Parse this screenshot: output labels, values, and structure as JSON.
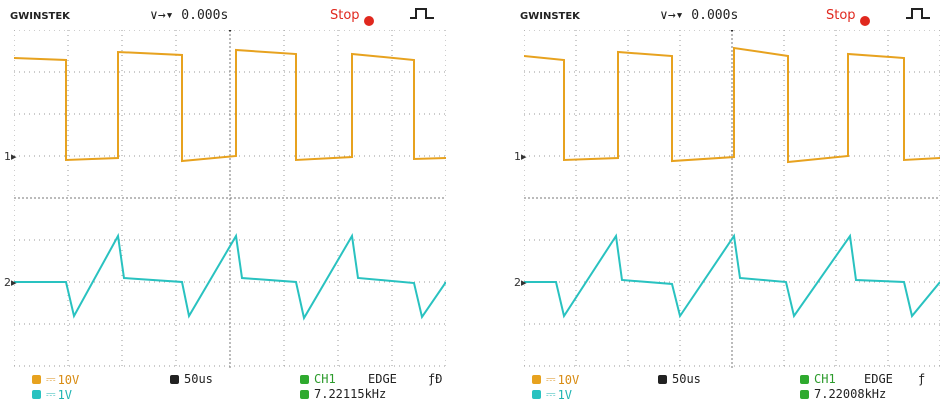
{
  "screens": [
    {
      "brand": "GWINSTEK",
      "timebase_offset": "∨→▾ 0.000s",
      "run_state": "Stop",
      "ch1_marker": "1",
      "ch2_marker": "2",
      "ch1_scale": "10V",
      "ch2_scale": "1V",
      "timebase": "50us",
      "trigger_source": "CH1",
      "trigger_type": "EDGE",
      "trigger_slope": "ƒĐ",
      "frequency": "7.22115kHz"
    },
    {
      "brand": "GWINSTEK",
      "timebase_offset": "∨→▾ 0.000s",
      "run_state": "Stop",
      "ch1_marker": "1",
      "ch2_marker": "2",
      "ch1_scale": "10V",
      "ch2_scale": "1V",
      "timebase": "50us",
      "trigger_source": "CH1",
      "trigger_type": "EDGE",
      "trigger_slope": "ƒ",
      "frequency": "7.22008kHz"
    }
  ],
  "colors": {
    "ch1": "#e7a21f",
    "ch2": "#29c2c0",
    "stop": "#e0281e",
    "trigger": "#2faa2f",
    "graticule": "#9a9a9a"
  },
  "icons": [
    "trigger-edge-icon",
    "stop-indicator-icon",
    "trigger-position-icon",
    "channel-marker-icon"
  ]
}
